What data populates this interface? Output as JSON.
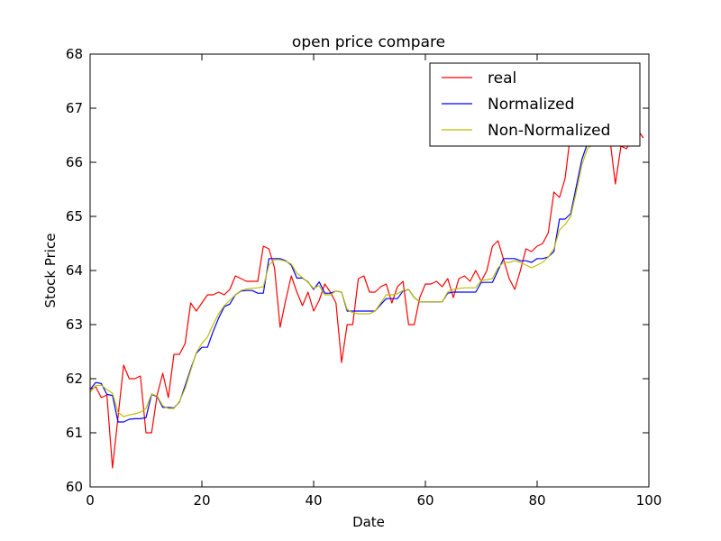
{
  "chart_data": {
    "type": "line",
    "title": "open price compare",
    "xlabel": "Date",
    "ylabel": "Stock Price",
    "xlim": [
      0,
      100
    ],
    "ylim": [
      60,
      68
    ],
    "xticks": [
      0,
      20,
      40,
      60,
      80,
      100
    ],
    "yticks": [
      60,
      61,
      62,
      63,
      64,
      65,
      66,
      67,
      68
    ],
    "grid": false,
    "legend_position": "top-right",
    "series": [
      {
        "name": "real",
        "color": "#ff0000",
        "x": [
          0,
          1,
          2,
          3,
          4,
          5,
          6,
          7,
          8,
          9,
          10,
          11,
          12,
          13,
          14,
          15,
          16,
          17,
          18,
          19,
          20,
          21,
          22,
          23,
          24,
          25,
          26,
          27,
          28,
          29,
          30,
          31,
          32,
          33,
          34,
          35,
          36,
          37,
          38,
          39,
          40,
          41,
          42,
          43,
          44,
          45,
          46,
          47,
          48,
          49,
          50,
          51,
          52,
          53,
          54,
          55,
          56,
          57,
          58,
          59,
          60,
          61,
          62,
          63,
          64,
          65,
          66,
          67,
          68,
          69,
          70,
          71,
          72,
          73,
          74,
          75,
          76,
          77,
          78,
          79,
          80,
          81,
          82,
          83,
          84,
          85,
          86,
          87,
          88,
          89,
          90,
          91,
          92,
          93,
          94,
          95,
          96,
          97,
          98,
          99
        ],
        "values": [
          61.8,
          61.85,
          61.65,
          61.7,
          60.35,
          61.3,
          62.25,
          62.0,
          62.0,
          62.05,
          61.0,
          61.0,
          61.7,
          62.1,
          61.65,
          62.45,
          62.45,
          62.65,
          63.4,
          63.25,
          63.4,
          63.55,
          63.55,
          63.6,
          63.55,
          63.65,
          63.9,
          63.85,
          63.8,
          63.8,
          63.8,
          64.45,
          64.4,
          64.05,
          62.95,
          63.45,
          63.9,
          63.6,
          63.35,
          63.6,
          63.25,
          63.45,
          63.75,
          63.6,
          63.4,
          62.3,
          63.0,
          63.0,
          63.85,
          63.9,
          63.6,
          63.6,
          63.7,
          63.75,
          63.4,
          63.7,
          63.8,
          63.0,
          63.0,
          63.5,
          63.75,
          63.75,
          63.8,
          63.7,
          63.85,
          63.5,
          63.85,
          63.9,
          63.8,
          64.0,
          63.8,
          64.0,
          64.45,
          64.55,
          64.2,
          63.85,
          63.65,
          64.0,
          64.4,
          64.35,
          64.45,
          64.5,
          64.7,
          65.45,
          65.35,
          65.7,
          66.55,
          66.65,
          66.3,
          66.4,
          66.45,
          66.55,
          66.65,
          66.45,
          65.6,
          66.3,
          66.25,
          66.45,
          66.6,
          66.45
        ]
      },
      {
        "name": "Normalized",
        "color": "#0000ff",
        "x": [
          0,
          1,
          2,
          3,
          4,
          5,
          6,
          7,
          8,
          9,
          10,
          11,
          12,
          13,
          14,
          15,
          16,
          17,
          18,
          19,
          20,
          21,
          22,
          23,
          24,
          25,
          26,
          27,
          28,
          29,
          30,
          31,
          32,
          33,
          34,
          35,
          36,
          37,
          38,
          39,
          40,
          41,
          42,
          43,
          44,
          45,
          46,
          47,
          48,
          49,
          50,
          51,
          52,
          53,
          54,
          55,
          56,
          57,
          58,
          59,
          60,
          61,
          62,
          63,
          64,
          65,
          66,
          67,
          68,
          69,
          70,
          71,
          72,
          73,
          74,
          75,
          76,
          77,
          78,
          79,
          80,
          81,
          82,
          83,
          84,
          85,
          86,
          87,
          88,
          89,
          90
        ],
        "values": [
          61.8,
          61.93,
          61.91,
          61.71,
          61.69,
          61.2,
          61.2,
          61.25,
          61.26,
          61.26,
          61.28,
          61.71,
          61.67,
          61.47,
          61.47,
          61.46,
          61.57,
          61.87,
          62.18,
          62.47,
          62.58,
          62.58,
          62.87,
          63.12,
          63.33,
          63.38,
          63.55,
          63.62,
          63.63,
          63.63,
          63.58,
          63.58,
          64.22,
          64.22,
          64.22,
          64.18,
          64.1,
          63.86,
          63.86,
          63.79,
          63.65,
          63.79,
          63.58,
          63.58,
          63.62,
          63.6,
          63.25,
          63.25,
          63.25,
          63.25,
          63.25,
          63.25,
          63.37,
          63.48,
          63.48,
          63.48,
          63.62,
          63.65,
          63.5,
          63.42,
          63.42,
          63.42,
          63.42,
          63.42,
          63.58,
          63.6,
          63.6,
          63.6,
          63.6,
          63.6,
          63.78,
          63.78,
          63.78,
          64.0,
          64.22,
          64.22,
          64.22,
          64.18,
          64.18,
          64.15,
          64.22,
          64.22,
          64.25,
          64.35,
          64.95,
          64.95,
          65.05,
          65.55,
          66.05,
          66.35,
          66.45
        ]
      },
      {
        "name": "Non-Normalized",
        "color": "#bfbf00",
        "x": [
          0,
          1,
          2,
          3,
          4,
          5,
          6,
          7,
          8,
          9,
          10,
          11,
          12,
          13,
          14,
          15,
          16,
          17,
          18,
          19,
          20,
          21,
          22,
          23,
          24,
          25,
          26,
          27,
          28,
          29,
          30,
          31,
          32,
          33,
          34,
          35,
          36,
          37,
          38,
          39,
          40,
          41,
          42,
          43,
          44,
          45,
          46,
          47,
          48,
          49,
          50,
          51,
          52,
          53,
          54,
          55,
          56,
          57,
          58,
          59,
          60,
          61,
          62,
          63,
          64,
          65,
          66,
          67,
          68,
          69,
          70,
          71,
          72,
          73,
          74,
          75,
          76,
          77,
          78,
          79,
          80,
          81,
          82,
          83,
          84,
          85,
          86,
          87,
          88,
          89,
          90
        ],
        "values": [
          61.75,
          61.87,
          61.88,
          61.8,
          61.73,
          61.38,
          61.3,
          61.33,
          61.35,
          61.38,
          61.45,
          61.72,
          61.68,
          61.5,
          61.45,
          61.45,
          61.58,
          61.82,
          62.15,
          62.48,
          62.65,
          62.77,
          63.0,
          63.2,
          63.35,
          63.45,
          63.55,
          63.63,
          63.66,
          63.67,
          63.68,
          63.7,
          64.1,
          64.2,
          64.2,
          64.17,
          64.12,
          63.95,
          63.87,
          63.78,
          63.67,
          63.72,
          63.55,
          63.55,
          63.62,
          63.6,
          63.28,
          63.22,
          63.2,
          63.2,
          63.2,
          63.25,
          63.4,
          63.55,
          63.55,
          63.57,
          63.63,
          63.65,
          63.5,
          63.42,
          63.42,
          63.42,
          63.42,
          63.42,
          63.6,
          63.65,
          63.67,
          63.68,
          63.68,
          63.68,
          63.82,
          63.83,
          63.85,
          64.05,
          64.15,
          64.15,
          64.18,
          64.15,
          64.1,
          64.05,
          64.1,
          64.15,
          64.25,
          64.4,
          64.75,
          64.85,
          65.0,
          65.45,
          65.95,
          66.25,
          66.35
        ]
      }
    ]
  }
}
